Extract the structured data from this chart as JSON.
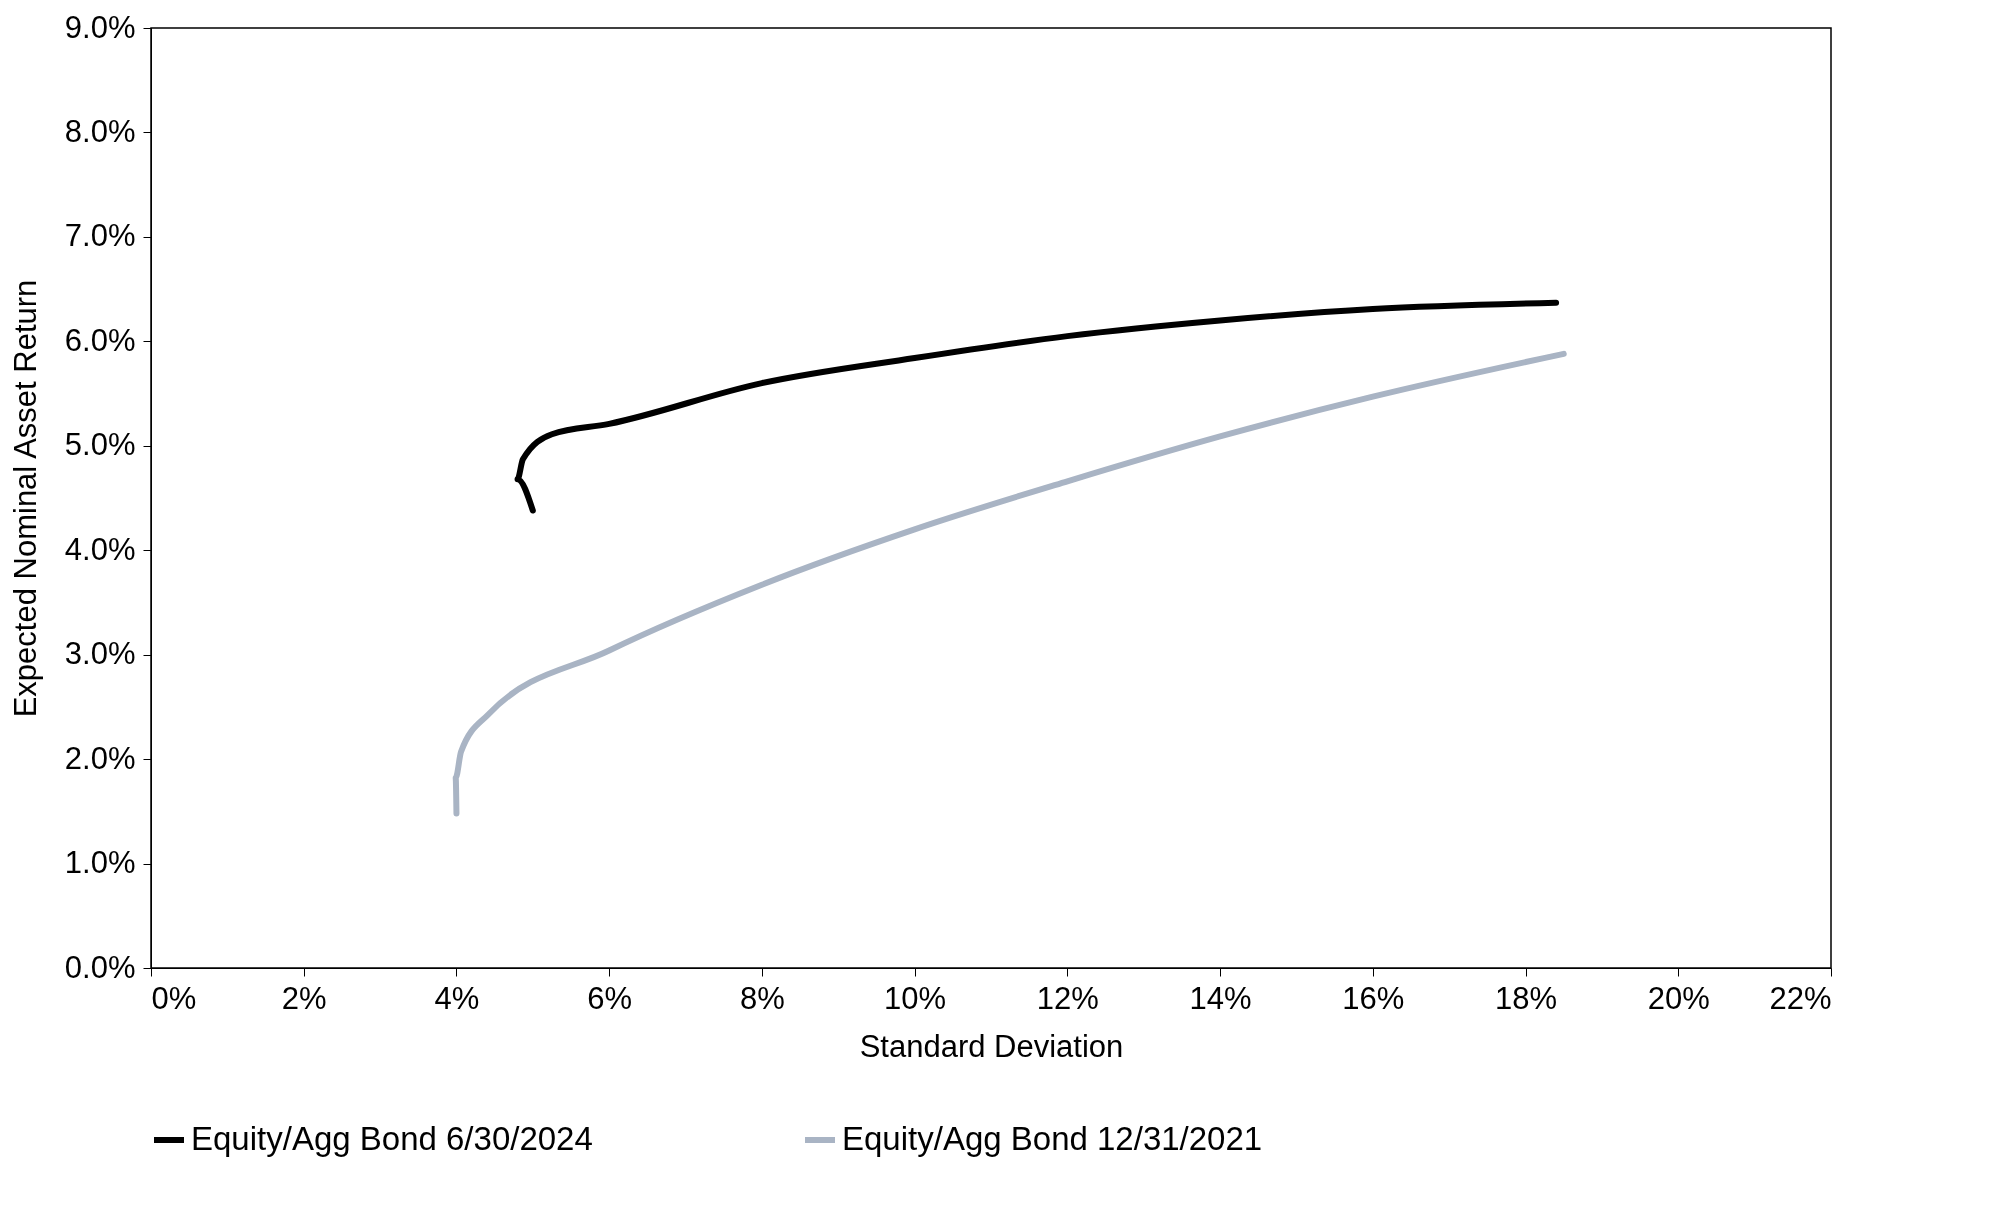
{
  "chart_data": {
    "type": "line",
    "xlabel": "Standard Deviation",
    "ylabel": "Expected Nominal Asset  Return",
    "xlim": [
      0,
      22
    ],
    "ylim": [
      0,
      9
    ],
    "xticks": [
      {
        "value": 0,
        "label": "0%"
      },
      {
        "value": 2,
        "label": "2%"
      },
      {
        "value": 4,
        "label": "4%"
      },
      {
        "value": 6,
        "label": "6%"
      },
      {
        "value": 8,
        "label": "8%"
      },
      {
        "value": 10,
        "label": "10%"
      },
      {
        "value": 12,
        "label": "12%"
      },
      {
        "value": 14,
        "label": "14%"
      },
      {
        "value": 16,
        "label": "16%"
      },
      {
        "value": 18,
        "label": "18%"
      },
      {
        "value": 20,
        "label": "20%"
      },
      {
        "value": 22,
        "label": "22%"
      }
    ],
    "yticks": [
      {
        "value": 0,
        "label": "0.0%"
      },
      {
        "value": 1,
        "label": "1.0%"
      },
      {
        "value": 2,
        "label": "2.0%"
      },
      {
        "value": 3,
        "label": "3.0%"
      },
      {
        "value": 4,
        "label": "4.0%"
      },
      {
        "value": 5,
        "label": "5.0%"
      },
      {
        "value": 6,
        "label": "6.0%"
      },
      {
        "value": 7,
        "label": "7.0%"
      },
      {
        "value": 8,
        "label": "8.0%"
      },
      {
        "value": 9,
        "label": "9.0%"
      }
    ],
    "grid": false,
    "legend": "bottom",
    "marker": "none",
    "line_style": "solid",
    "series": [
      {
        "name": "Equity/Agg Bond 6/30/2024",
        "color": "#000000",
        "x": [
          5.0,
          4.8,
          4.87,
          5.25,
          6,
          8,
          10,
          12,
          14,
          16,
          18.4
        ],
        "values": [
          4.38,
          4.68,
          4.87,
          5.11,
          5.21,
          5.6,
          5.84,
          6.05,
          6.2,
          6.31,
          6.37
        ]
      },
      {
        "name": "Equity/Agg Bond 12/31/2021",
        "color": "#a9b4c4",
        "x": [
          4.0,
          3.99,
          4.06,
          4.42,
          6,
          8,
          10,
          12,
          14,
          16,
          18.5
        ],
        "values": [
          1.48,
          1.82,
          2.07,
          2.43,
          3.04,
          3.67,
          4.2,
          4.66,
          5.09,
          5.47,
          5.88
        ]
      }
    ]
  }
}
